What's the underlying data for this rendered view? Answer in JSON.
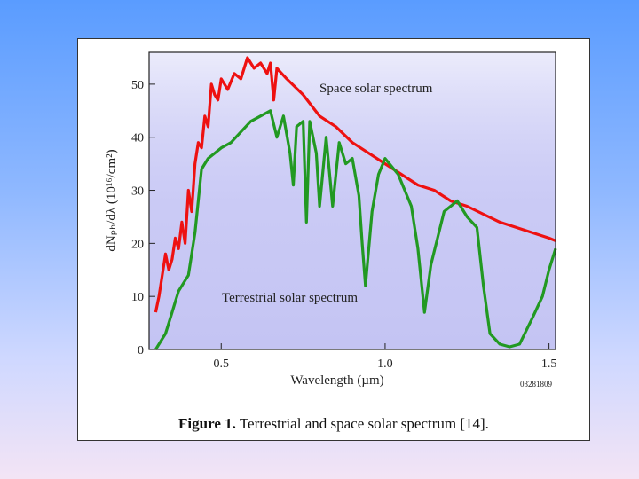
{
  "chart_data": {
    "type": "line",
    "title": "",
    "xlabel": "Wavelength (µm)",
    "ylabel": "dNₚₕ/dλ (10¹⁶/cm²)",
    "xlim": [
      0.28,
      1.52
    ],
    "ylim": [
      0,
      56
    ],
    "xticks": [
      0.5,
      1.0,
      1.5
    ],
    "xtick_labels": [
      "0.5",
      "1.0",
      "1.5"
    ],
    "yticks": [
      0,
      10,
      20,
      30,
      40,
      50
    ],
    "ytick_labels": [
      "0",
      "10",
      "20",
      "30",
      "40",
      "50"
    ],
    "annotations": {
      "space": "Space solar spectrum",
      "terrestrial": "Terrestrial solar spectrum",
      "code": "03281809"
    },
    "series": [
      {
        "name": "Space solar spectrum",
        "color": "#ee1111",
        "x": [
          0.3,
          0.31,
          0.32,
          0.33,
          0.34,
          0.35,
          0.36,
          0.37,
          0.38,
          0.39,
          0.4,
          0.41,
          0.42,
          0.43,
          0.44,
          0.45,
          0.46,
          0.47,
          0.48,
          0.49,
          0.5,
          0.52,
          0.54,
          0.56,
          0.58,
          0.6,
          0.62,
          0.64,
          0.65,
          0.66,
          0.67,
          0.7,
          0.75,
          0.8,
          0.85,
          0.9,
          0.95,
          1.0,
          1.05,
          1.1,
          1.15,
          1.2,
          1.25,
          1.3,
          1.35,
          1.4,
          1.45,
          1.5,
          1.52
        ],
        "values": [
          7,
          10,
          14,
          18,
          15,
          17,
          21,
          19,
          24,
          20,
          30,
          26,
          35,
          39,
          38,
          44,
          42,
          50,
          48,
          47,
          51,
          49,
          52,
          51,
          55,
          53,
          54,
          52,
          54,
          47,
          53,
          51,
          48,
          44,
          42,
          39,
          37,
          35,
          33,
          31,
          30,
          28,
          27,
          25.5,
          24,
          23,
          22,
          21,
          20.5
        ]
      },
      {
        "name": "Terrestrial solar spectrum",
        "color": "#229922",
        "x": [
          0.3,
          0.31,
          0.32,
          0.33,
          0.34,
          0.35,
          0.36,
          0.37,
          0.38,
          0.39,
          0.4,
          0.42,
          0.43,
          0.44,
          0.46,
          0.48,
          0.5,
          0.53,
          0.56,
          0.59,
          0.62,
          0.65,
          0.67,
          0.69,
          0.71,
          0.72,
          0.73,
          0.75,
          0.76,
          0.77,
          0.79,
          0.8,
          0.82,
          0.84,
          0.86,
          0.88,
          0.9,
          0.92,
          0.93,
          0.94,
          0.96,
          0.98,
          1.0,
          1.04,
          1.08,
          1.1,
          1.12,
          1.14,
          1.18,
          1.2,
          1.22,
          1.25,
          1.28,
          1.3,
          1.32,
          1.35,
          1.38,
          1.41,
          1.45,
          1.48,
          1.5,
          1.52
        ],
        "values": [
          0,
          1,
          2,
          3,
          5,
          7,
          9,
          11,
          12,
          13,
          14,
          22,
          28,
          34,
          36,
          37,
          38,
          39,
          41,
          43,
          44,
          45,
          40,
          44,
          37,
          31,
          42,
          43,
          24,
          43,
          37,
          27,
          40,
          27,
          39,
          35,
          36,
          29,
          20,
          12,
          26,
          33,
          36,
          33,
          27,
          19,
          7,
          16,
          26,
          27,
          28,
          25,
          23,
          12,
          3,
          1,
          0.5,
          1,
          6,
          10,
          15,
          19
        ]
      }
    ]
  },
  "caption": {
    "label": "Figure 1.",
    "text": " Terrestrial and space solar spectrum [14]."
  }
}
